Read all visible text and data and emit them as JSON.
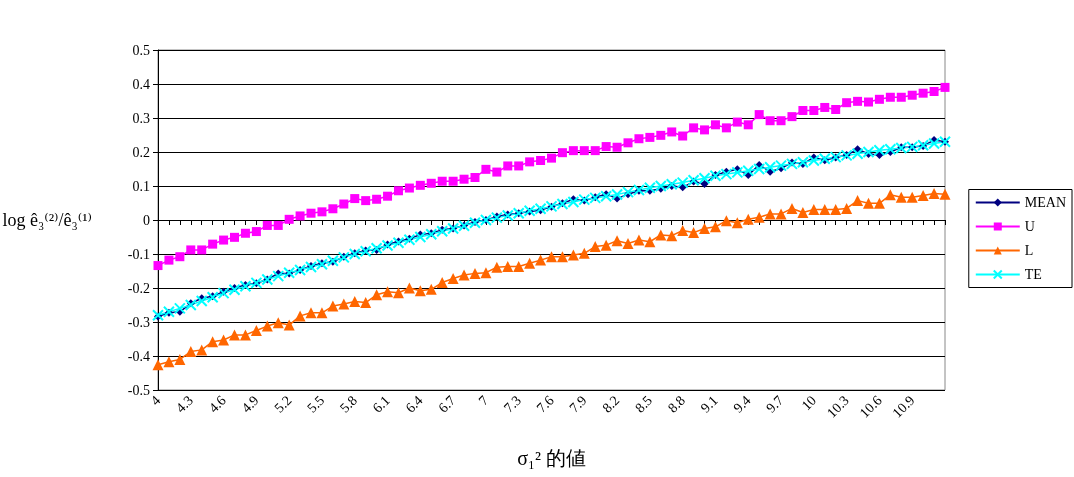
{
  "chart_data": {
    "type": "line",
    "xlabel": "σ₁² 的値",
    "ylabel": "log ê₃⁽²⁾/ê₃⁽¹⁾",
    "categories": [
      "4",
      null,
      null,
      "4.3",
      null,
      null,
      "4.6",
      null,
      null,
      "4.9",
      null,
      null,
      "5.2",
      null,
      null,
      "5.5",
      null,
      null,
      "5.8",
      null,
      null,
      "6.1",
      null,
      null,
      "6.4",
      null,
      null,
      "6.7",
      null,
      null,
      "7",
      null,
      null,
      "7.3",
      null,
      null,
      "7.6",
      null,
      null,
      "7.9",
      null,
      null,
      "8.2",
      null,
      null,
      "8.5",
      null,
      null,
      "8.8",
      null,
      null,
      "9.1",
      null,
      null,
      "9.4",
      null,
      null,
      "9.7",
      null,
      null,
      "10",
      null,
      null,
      "10.3",
      null,
      null,
      "10.6",
      null,
      null,
      "10.9",
      null,
      null,
      null
    ],
    "series": [
      {
        "name": "MEAN",
        "color": "#000080",
        "marker": "diamond",
        "values": [
          -0.284,
          -0.273,
          -0.27,
          -0.245,
          -0.23,
          -0.224,
          -0.211,
          -0.2,
          -0.191,
          -0.186,
          -0.175,
          -0.157,
          -0.157,
          -0.147,
          -0.135,
          -0.127,
          -0.123,
          -0.108,
          -0.098,
          -0.09,
          -0.088,
          -0.072,
          -0.063,
          -0.055,
          -0.043,
          -0.039,
          -0.029,
          -0.025,
          -0.016,
          -0.006,
          0,
          0.01,
          0.016,
          0.02,
          0.025,
          0.029,
          0.039,
          0.049,
          0.061,
          0.057,
          0.067,
          0.076,
          0.063,
          0.076,
          0.086,
          0.086,
          0.092,
          0.1,
          0.096,
          0.113,
          0.106,
          0.132,
          0.142,
          0.149,
          0.132,
          0.162,
          0.142,
          0.152,
          0.169,
          0.165,
          0.184,
          0.176,
          0.184,
          0.191,
          0.208,
          0.194,
          0.191,
          0.2,
          0.214,
          0.214,
          0.218,
          0.235,
          0.23
        ]
      },
      {
        "name": "U",
        "color": "#ff00ff",
        "marker": "square",
        "values": [
          -0.134,
          -0.118,
          -0.108,
          -0.088,
          -0.088,
          -0.071,
          -0.059,
          -0.051,
          -0.039,
          -0.034,
          -0.016,
          -0.016,
          0.002,
          0.012,
          0.02,
          0.024,
          0.033,
          0.047,
          0.063,
          0.057,
          0.061,
          0.07,
          0.086,
          0.094,
          0.102,
          0.108,
          0.114,
          0.114,
          0.12,
          0.125,
          0.149,
          0.141,
          0.159,
          0.159,
          0.171,
          0.175,
          0.182,
          0.198,
          0.204,
          0.204,
          0.204,
          0.216,
          0.214,
          0.227,
          0.239,
          0.243,
          0.249,
          0.259,
          0.247,
          0.271,
          0.265,
          0.28,
          0.271,
          0.288,
          0.28,
          0.31,
          0.292,
          0.292,
          0.304,
          0.322,
          0.322,
          0.331,
          0.325,
          0.345,
          0.349,
          0.347,
          0.355,
          0.361,
          0.361,
          0.367,
          0.373,
          0.378,
          0.39
        ]
      },
      {
        "name": "L",
        "color": "#ff6600",
        "marker": "triangle",
        "values": [
          -0.426,
          -0.417,
          -0.41,
          -0.387,
          -0.382,
          -0.358,
          -0.353,
          -0.338,
          -0.338,
          -0.325,
          -0.312,
          -0.302,
          -0.309,
          -0.282,
          -0.273,
          -0.273,
          -0.253,
          -0.247,
          -0.24,
          -0.243,
          -0.22,
          -0.211,
          -0.214,
          -0.2,
          -0.208,
          -0.204,
          -0.184,
          -0.172,
          -0.162,
          -0.157,
          -0.155,
          -0.139,
          -0.137,
          -0.137,
          -0.127,
          -0.118,
          -0.108,
          -0.108,
          -0.103,
          -0.098,
          -0.078,
          -0.074,
          -0.061,
          -0.069,
          -0.059,
          -0.064,
          -0.044,
          -0.046,
          -0.031,
          -0.037,
          -0.025,
          -0.02,
          -0.002,
          -0.008,
          0.002,
          0.008,
          0.018,
          0.018,
          0.034,
          0.022,
          0.031,
          0.031,
          0.031,
          0.034,
          0.057,
          0.049,
          0.049,
          0.074,
          0.067,
          0.067,
          0.072,
          0.078,
          0.076
        ]
      },
      {
        "name": "TE",
        "color": "#00ffff",
        "marker": "cross",
        "values": [
          -0.28,
          -0.27,
          -0.26,
          -0.25,
          -0.238,
          -0.227,
          -0.215,
          -0.205,
          -0.195,
          -0.185,
          -0.175,
          -0.165,
          -0.155,
          -0.147,
          -0.138,
          -0.13,
          -0.12,
          -0.11,
          -0.1,
          -0.092,
          -0.083,
          -0.075,
          -0.067,
          -0.058,
          -0.05,
          -0.042,
          -0.033,
          -0.025,
          -0.017,
          -0.008,
          0,
          0.007,
          0.013,
          0.02,
          0.027,
          0.033,
          0.04,
          0.047,
          0.053,
          0.06,
          0.065,
          0.07,
          0.075,
          0.082,
          0.088,
          0.095,
          0.1,
          0.105,
          0.11,
          0.117,
          0.123,
          0.13,
          0.135,
          0.14,
          0.145,
          0.15,
          0.155,
          0.16,
          0.165,
          0.17,
          0.175,
          0.18,
          0.185,
          0.19,
          0.195,
          0.2,
          0.205,
          0.208,
          0.212,
          0.215,
          0.22,
          0.225,
          0.23
        ]
      }
    ],
    "ylim": [
      -0.5,
      0.5
    ],
    "yticks": [
      -0.5,
      -0.4,
      -0.3,
      -0.2,
      -0.1,
      0,
      0.1,
      0.2,
      0.3,
      0.4,
      0.5
    ],
    "grid": "y",
    "legend": "right"
  }
}
